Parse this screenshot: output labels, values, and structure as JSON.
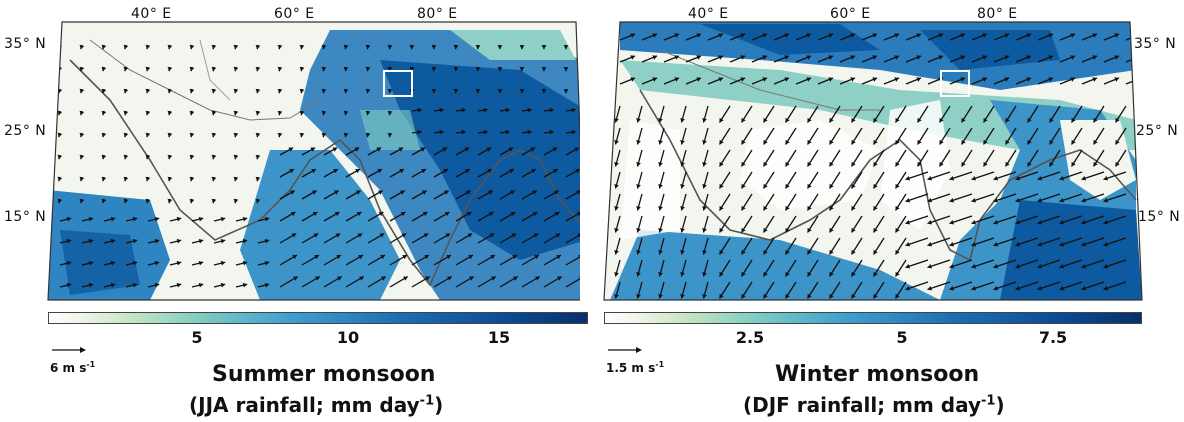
{
  "panels": [
    {
      "title": "Summer monsoon",
      "subtitle_main": "(JJA rainfall; mm  day",
      "subtitle_sup": "-1",
      "subtitle_end": ")",
      "lon_labels": [
        "40° E",
        "60° E",
        "80° E"
      ],
      "lat_labels": [
        "35° N",
        "25° N",
        "15° N"
      ],
      "colorbar_ticks": [
        "5",
        "10",
        "15"
      ],
      "reference_vector": "6 m s",
      "reference_vector_sup": "-1",
      "colors": {
        "land": "#f2f6ee",
        "wet": "#1e6fb2",
        "box": "#ffffff"
      }
    },
    {
      "title": "Winter monsoon",
      "subtitle_main": "(DJF rainfall; mm  day",
      "subtitle_sup": "-1",
      "subtitle_end": ")",
      "lon_labels": [
        "40° E",
        "60° E",
        "80° E"
      ],
      "lat_labels": [
        "35° N",
        "25° N",
        "15° N"
      ],
      "colorbar_ticks": [
        "2.5",
        "5",
        "7.5"
      ],
      "reference_vector": "1.5 m s",
      "reference_vector_sup": "-1",
      "colors": {
        "land": "#f2f6ee",
        "wet": "#1e6fb2",
        "box": "#ffffff"
      }
    }
  ]
}
